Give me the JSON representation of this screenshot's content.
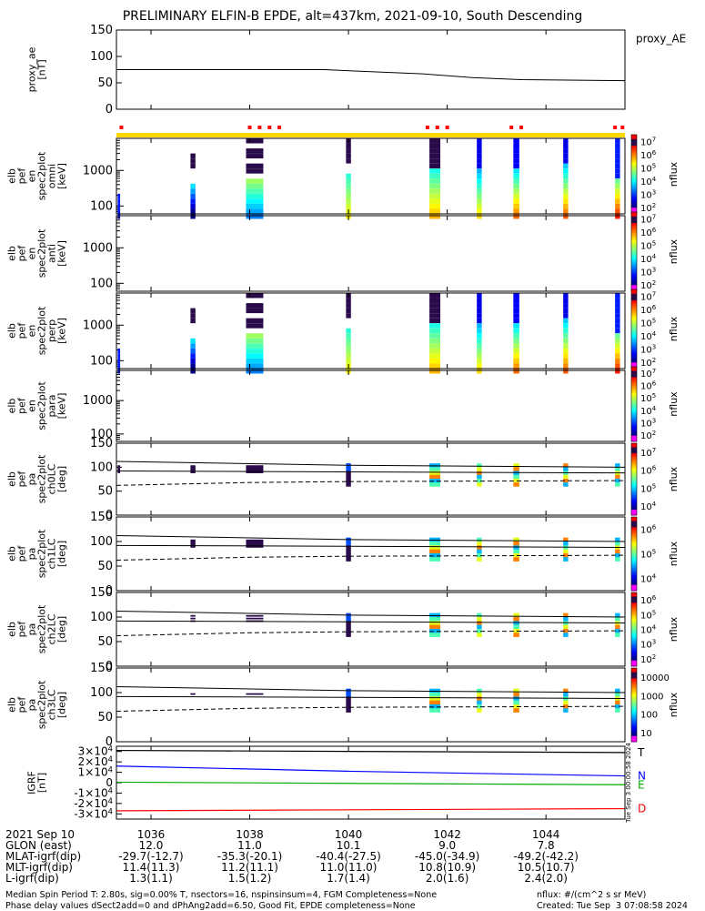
{
  "title": "PRELIMINARY ELFIN-B EPDE, alt=437km, 2021-09-10, South Descending",
  "chart_data": {
    "type": "spectrogram-stack",
    "time_ticks": [
      "1036",
      "1038",
      "1040",
      "1042",
      "1044"
    ],
    "panels": [
      {
        "id": "proxy_ae",
        "ylabel": "proxy_ae\n[nT]",
        "yticks": [
          "0",
          "50",
          "100",
          "150"
        ],
        "ylim": [
          0,
          150
        ],
        "legend": "proxy_AE",
        "line": {
          "t": [
            1035.3,
            1039.5,
            1041.5,
            1042.5,
            1043.5,
            1045.6
          ],
          "v": [
            75,
            75,
            67,
            60,
            56,
            54
          ]
        }
      },
      {
        "id": "omni",
        "ylabel": "elb\npef\nen\nspec2plot\nomni\n[keV]",
        "yticks": [
          "100",
          "1000"
        ],
        "zlabel": "nflux",
        "zticks": [
          "10^2",
          "10^3",
          "10^4",
          "10^5",
          "10^6",
          "10^7"
        ]
      },
      {
        "id": "anti",
        "ylabel": "elb\npef\nen\nspec2plot\nanti\n[keV]",
        "yticks": [
          "100",
          "1000"
        ],
        "zlabel": "nflux",
        "zticks": [
          "10^2",
          "10^3",
          "10^4",
          "10^5",
          "10^6",
          "10^7"
        ]
      },
      {
        "id": "perp",
        "ylabel": "elb\npef\nen\nspec2plot\nperp\n[keV]",
        "yticks": [
          "100",
          "1000"
        ],
        "zlabel": "nflux",
        "zticks": [
          "10^2",
          "10^3",
          "10^4",
          "10^5",
          "10^6",
          "10^7"
        ]
      },
      {
        "id": "para",
        "ylabel": "elb\npef\nen\nspec2plot\npara\n[keV]",
        "yticks": [
          "100",
          "1000"
        ],
        "zlabel": "nflux",
        "zticks": [
          "10^2",
          "10^3",
          "10^4",
          "10^5",
          "10^6",
          "10^7"
        ]
      },
      {
        "id": "ch0LC",
        "ylabel": "elb\npef\npa\nspec2plot\nch0LC\n[deg]",
        "yticks": [
          "0",
          "50",
          "100",
          "150"
        ],
        "zlabel": "nflux",
        "zticks": [
          "10^4",
          "10^5",
          "10^6",
          "10^7"
        ]
      },
      {
        "id": "ch1LC",
        "ylabel": "elb\npef\npa\nspec2plot\nch1LC\n[deg]",
        "yticks": [
          "0",
          "50",
          "100",
          "150"
        ],
        "zlabel": "nflux",
        "zticks": [
          "10^4",
          "10^5",
          "10^6"
        ]
      },
      {
        "id": "ch2LC",
        "ylabel": "elb\npef\npa\nspec2plot\nch2LC\n[deg]",
        "yticks": [
          "0",
          "50",
          "100",
          "150"
        ],
        "zlabel": "nflux",
        "zticks": [
          "10^2",
          "10^3",
          "10^4",
          "10^5",
          "10^6"
        ]
      },
      {
        "id": "ch3LC",
        "ylabel": "elb\npef\npa\nspec2plot\nch3LC\n[deg]",
        "yticks": [
          "0",
          "50",
          "100",
          "150"
        ],
        "zlabel": "nflux",
        "zticks": [
          "10",
          "100",
          "1000",
          "10000"
        ]
      },
      {
        "id": "bgrf",
        "ylabel": "IGRF\n[nT]",
        "yticks": [
          "-3x10^4",
          "-2x10^4",
          "-1x10^4",
          "0",
          "1x10^4",
          "2x10^4",
          "3x10^4"
        ],
        "ylim": [
          -35000,
          35000
        ],
        "series": [
          {
            "name": "T",
            "color": "#000000",
            "t": [
              1035.3,
              1045.6
            ],
            "v": [
              31000,
              29000
            ]
          },
          {
            "name": "N",
            "color": "#0000ff",
            "t": [
              1035.3,
              1040,
              1045.6
            ],
            "v": [
              16000,
              11000,
              6500
            ]
          },
          {
            "name": "E",
            "color": "#00aa00",
            "t": [
              1035.3,
              1045.6
            ],
            "v": [
              500,
              -2000
            ]
          },
          {
            "name": "D",
            "color": "#ff0000",
            "t": [
              1035.3,
              1045.6
            ],
            "v": [
              -27000,
              -25000
            ]
          }
        ],
        "side_label": "Tue Sep  3 00:00:58 2024"
      }
    ]
  },
  "footer": {
    "date": "2021 Sep 10",
    "rows": [
      {
        "label": "GLON (east)",
        "values": [
          "12.0",
          "11.0",
          "10.1",
          "9.0",
          "7.8"
        ]
      },
      {
        "label": "MLAT-igrf(dip)",
        "values": [
          "-29.7(-12.7)",
          "-35.3(-20.1)",
          "-40.4(-27.5)",
          "-45.0(-34.9)",
          "-49.2(-42.2)"
        ]
      },
      {
        "label": "MLT-igrf(dip)",
        "values": [
          "11.4(11.3)",
          "11.2(11.1)",
          "11.0(11.0)",
          "10.8(10.9)",
          "10.5(10.7)"
        ]
      },
      {
        "label": "L-igrf(dip)",
        "values": [
          "1.3(1.1)",
          "1.5(1.2)",
          "1.7(1.4)",
          "2.0(1.6)",
          "2.4(2.0)"
        ]
      }
    ],
    "note1": "Median Spin Period T: 2.80s, sig=0.00% T, nsectors=16, nspinsinsum=4, FGM Completeness=None",
    "note2": "Phase delay values dSect2add=0 and dPhAng2add=6.50, Good Fit, EPDE completeness=None",
    "nflux_units": "nflux: #/(cm^2 s sr MeV)",
    "created": "Created: Tue Sep  3 07:08:58 2024"
  }
}
